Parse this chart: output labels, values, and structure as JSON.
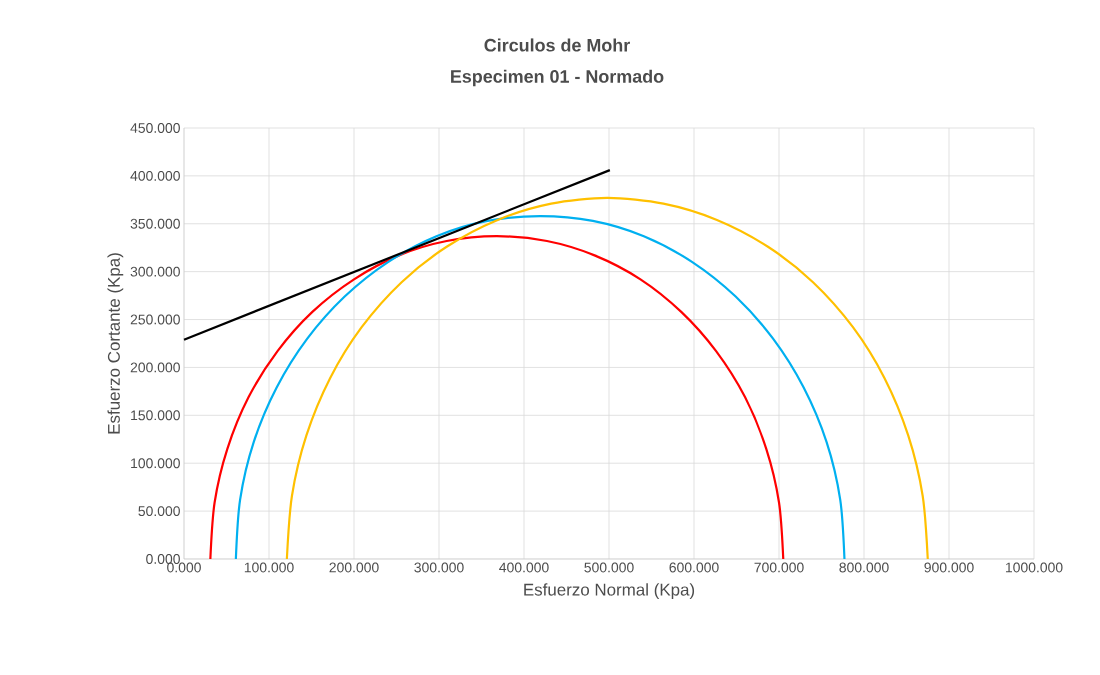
{
  "chart_data": {
    "type": "line",
    "title": "Circulos de Mohr",
    "subtitle": "Especimen 01 - Normado",
    "xlabel": "Esfuerzo Normal (Kpa)",
    "ylabel": "Esfuerzo Cortante (Kpa)",
    "xlim": [
      0,
      1000
    ],
    "ylim": [
      0,
      450
    ],
    "xticks": [
      {
        "value": 0,
        "label": "0.000"
      },
      {
        "value": 100,
        "label": "100.000"
      },
      {
        "value": 200,
        "label": "200.000"
      },
      {
        "value": 300,
        "label": "300.000"
      },
      {
        "value": 400,
        "label": "400.000"
      },
      {
        "value": 500,
        "label": "500.000"
      },
      {
        "value": 600,
        "label": "600.000"
      },
      {
        "value": 700,
        "label": "700.000"
      },
      {
        "value": 800,
        "label": "800.000"
      },
      {
        "value": 900,
        "label": "900.000"
      },
      {
        "value": 1000,
        "label": "1000.000"
      }
    ],
    "yticks": [
      {
        "value": 0,
        "label": "0.000"
      },
      {
        "value": 50,
        "label": "50.000"
      },
      {
        "value": 100,
        "label": "100.000"
      },
      {
        "value": 150,
        "label": "150.000"
      },
      {
        "value": 200,
        "label": "200.000"
      },
      {
        "value": 250,
        "label": "250.000"
      },
      {
        "value": 300,
        "label": "300.000"
      },
      {
        "value": 350,
        "label": "350.000"
      },
      {
        "value": 400,
        "label": "400.000"
      },
      {
        "value": 450,
        "label": "450.000"
      }
    ],
    "grid": true,
    "series": [
      {
        "color": "#ff0000",
        "x": [
          705,
          700,
          685,
          660,
          626,
          585,
          537,
          483,
          427,
          368,
          309,
          253,
          200,
          151,
          110,
          76,
          51,
          36,
          31
        ],
        "values": [
          0,
          59,
          115,
          169,
          217,
          258,
          292,
          317,
          332,
          337,
          332,
          317,
          292,
          258,
          217,
          169,
          115,
          59,
          0
        ]
      },
      {
        "color": "#00b0f0",
        "x": [
          777,
          772,
          756,
          729,
          693,
          649,
          598,
          541,
          481,
          419,
          357,
          297,
          240,
          189,
          145,
          109,
          82,
          66,
          61
        ],
        "values": [
          0,
          62,
          122,
          179,
          230,
          274,
          310,
          337,
          353,
          358,
          353,
          337,
          310,
          274,
          230,
          179,
          122,
          62,
          0
        ]
      },
      {
        "color": "#ffc000",
        "x": [
          875,
          869,
          852,
          824,
          787,
          740,
          687,
          627,
          564,
          498,
          432,
          369,
          309,
          256,
          209,
          172,
          144,
          127,
          121
        ],
        "values": [
          0,
          66,
          129,
          189,
          242,
          289,
          326,
          354,
          371,
          377,
          371,
          354,
          326,
          289,
          242,
          189,
          129,
          66,
          0
        ]
      },
      {
        "color": "#000000",
        "x": [
          0,
          501
        ],
        "values": [
          229,
          406
        ]
      }
    ]
  }
}
